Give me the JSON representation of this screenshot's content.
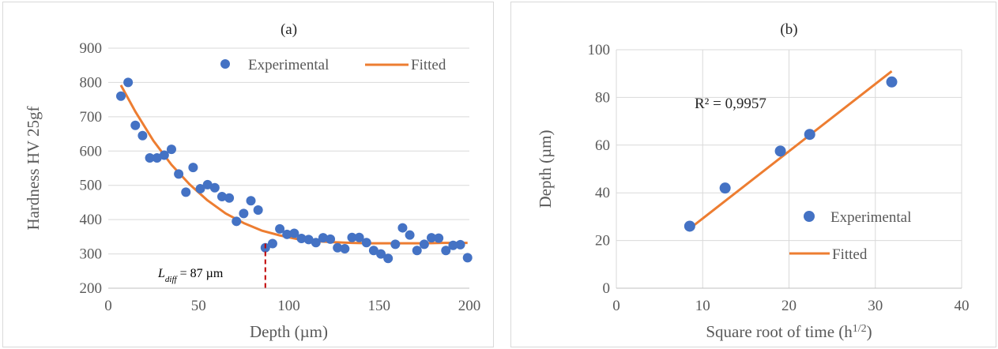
{
  "chart_data": [
    {
      "type": "scatter",
      "title": "(a)",
      "xlabel": "Depth (µm)",
      "ylabel": "Hardness HV 25gf",
      "xlim": [
        0,
        200
      ],
      "ylim": [
        200,
        900
      ],
      "xticks": [
        "0",
        "50",
        "100",
        "150",
        "200"
      ],
      "yticks": [
        "200",
        "300",
        "400",
        "500",
        "600",
        "700",
        "800",
        "900"
      ],
      "grid": "horizontal",
      "legend_position": "top-right",
      "annotation": {
        "label": "L",
        "subscript": "diff",
        "text": " = 87 µm",
        "x": 87
      },
      "series": [
        {
          "name": "Experimental",
          "kind": "scatter",
          "color": "#4472c4",
          "x": [
            7,
            11,
            15,
            19,
            23,
            27,
            31,
            35,
            39,
            43,
            47,
            51,
            55,
            59,
            63,
            67,
            71,
            75,
            79,
            83,
            87,
            91,
            95,
            99,
            103,
            107,
            111,
            115,
            119,
            123,
            127,
            131,
            135,
            139,
            143,
            147,
            151,
            155,
            159,
            163,
            167,
            171,
            175,
            179,
            183,
            187,
            191,
            195,
            199
          ],
          "y": [
            760,
            800,
            675,
            645,
            580,
            580,
            588,
            605,
            533,
            480,
            552,
            490,
            502,
            493,
            467,
            463,
            395,
            418,
            455,
            428,
            318,
            330,
            373,
            357,
            360,
            345,
            342,
            333,
            347,
            343,
            318,
            315,
            348,
            348,
            333,
            310,
            300,
            287,
            328,
            376,
            355,
            310,
            328,
            347,
            346,
            310,
            325,
            327,
            289
          ]
        },
        {
          "name": "Fitted",
          "kind": "line",
          "color": "#ed7d31",
          "x": [
            7,
            15,
            25,
            35,
            45,
            55,
            65,
            75,
            85,
            95,
            105,
            115,
            125,
            135,
            145,
            155,
            165,
            175,
            185,
            199
          ],
          "y": [
            792,
            715,
            630,
            560,
            503,
            456,
            418,
            390,
            368,
            354,
            343,
            337,
            334,
            332,
            331,
            331,
            331,
            331,
            332,
            332
          ]
        }
      ]
    },
    {
      "type": "scatter",
      "title": "(b)",
      "xlabel": "Square root of time (h",
      "xlabel_sup": "1/2",
      "xlabel_end": ")",
      "ylabel": "Depth (µm)",
      "xlim": [
        0,
        40
      ],
      "ylim": [
        0,
        100
      ],
      "xticks": [
        "0",
        "10",
        "20",
        "30",
        "40"
      ],
      "yticks": [
        "0",
        "20",
        "40",
        "60",
        "80",
        "100"
      ],
      "grid": "both",
      "legend_position": "bottom-right",
      "annotation": {
        "text": "R² = 0,9957"
      },
      "series": [
        {
          "name": "Experimental",
          "kind": "scatter",
          "color": "#4472c4",
          "x": [
            8.5,
            12.6,
            19.0,
            22.4,
            31.9
          ],
          "y": [
            26,
            42,
            57.5,
            64.5,
            86.5
          ]
        },
        {
          "name": "Fitted",
          "kind": "line",
          "color": "#ed7d31",
          "x": [
            8.5,
            31.9
          ],
          "y": [
            25,
            91
          ]
        }
      ]
    }
  ]
}
